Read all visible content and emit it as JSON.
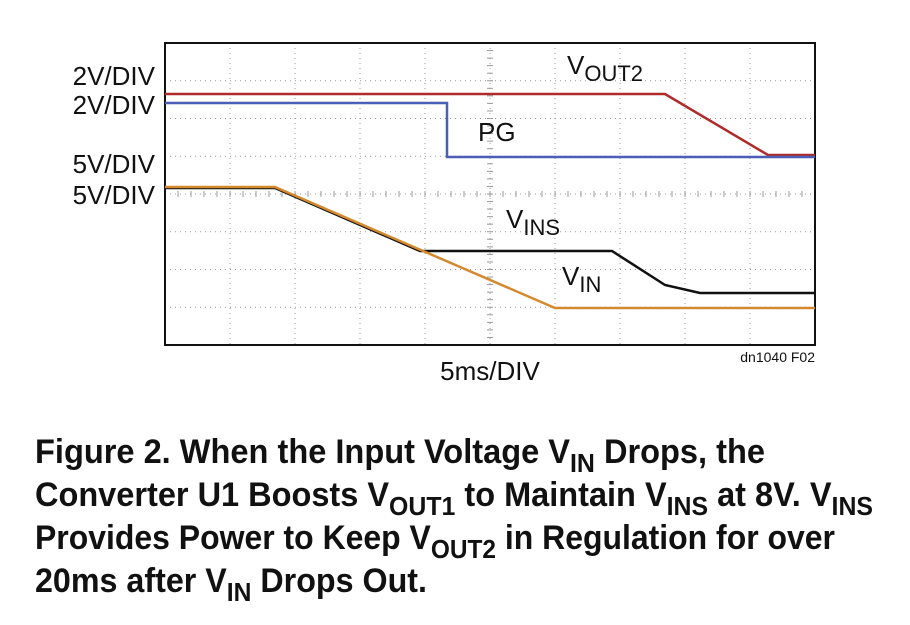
{
  "figure": {
    "scales": [
      "2V/DIV",
      "2V/DIV",
      "5V/DIV",
      "5V/DIV"
    ],
    "traces": {
      "vout2": {
        "main": "V",
        "sub": "OUT2"
      },
      "pg": {
        "main": "PG"
      },
      "vins": {
        "main": "V",
        "sub": "INS"
      },
      "vin": {
        "main": "V",
        "sub": "IN"
      }
    },
    "time_scale": "5ms/DIV",
    "figure_id": "dn1040 F02",
    "caption": {
      "lines": [
        [
          {
            "t": "Figure 2. When the Input Voltage V"
          },
          {
            "sub": "IN"
          },
          {
            "t": " Drops, the"
          }
        ],
        [
          {
            "t": "Converter U1 Boosts V"
          },
          {
            "sub": "OUT1"
          },
          {
            "t": " to Maintain V"
          },
          {
            "sub": "INS"
          },
          {
            "t": " at 8V. V"
          },
          {
            "sub": "INS"
          }
        ],
        [
          {
            "t": "Provides Power to Keep V"
          },
          {
            "sub": "OUT2"
          },
          {
            "t": " in Regulation for over"
          }
        ],
        [
          {
            "t": "20ms after V"
          },
          {
            "sub": "IN"
          },
          {
            "t": " Drops Out."
          }
        ]
      ]
    }
  }
}
